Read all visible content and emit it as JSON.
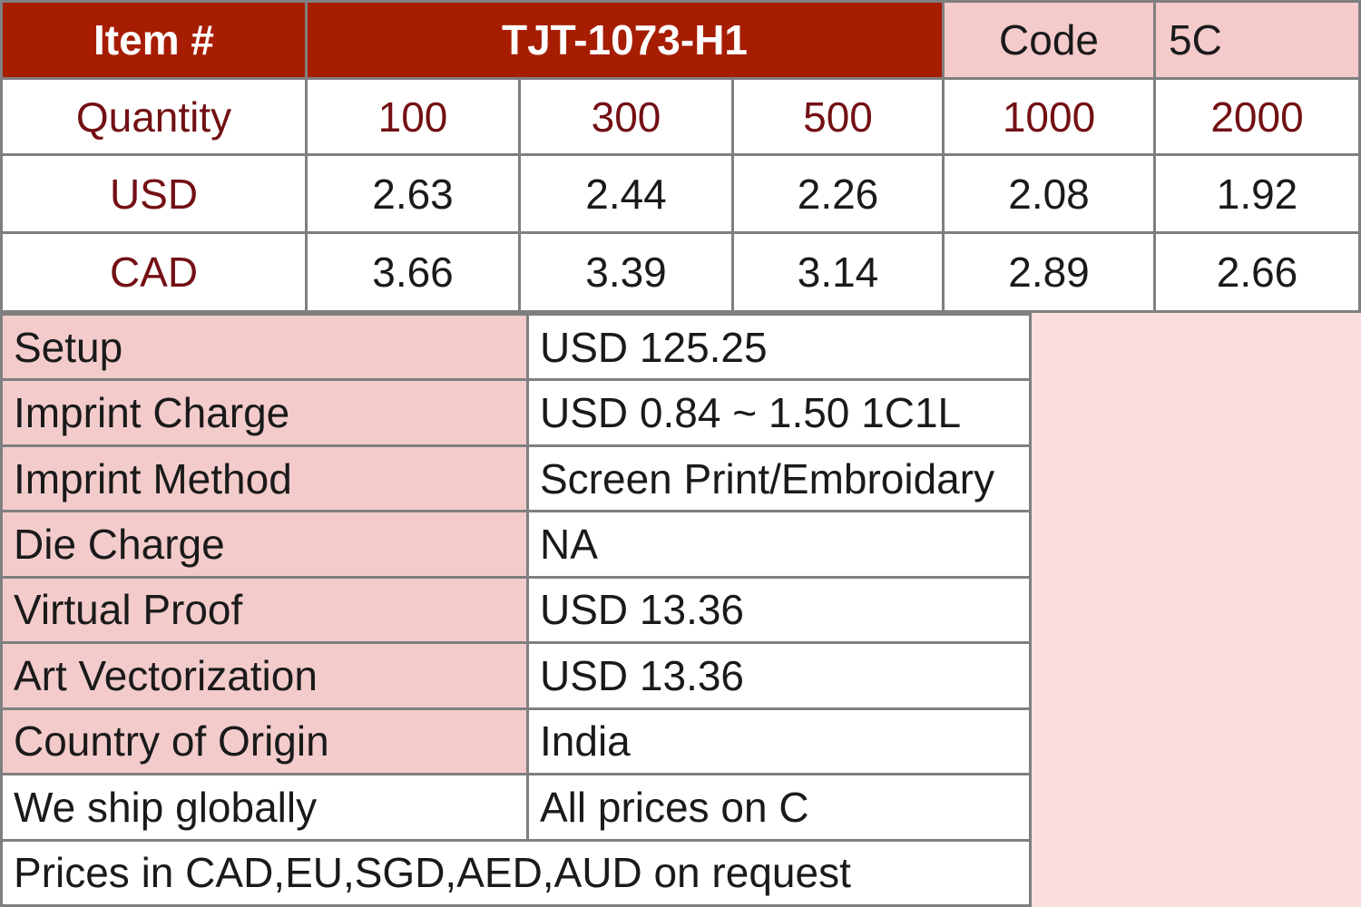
{
  "colors": {
    "header_bg": "#a61d02",
    "header_text": "#ffffff",
    "pink_cell": "#f4cacb",
    "label_pink": "#f3cbcb",
    "filler_pink": "#fcdede",
    "maroon_text": "#731014",
    "border_gray": "#7f7f7f",
    "body_text": "#1a1a1a"
  },
  "price_table": {
    "item_label": "Item #",
    "item_number": "TJT-1073-H1",
    "code_label": "Code",
    "code_value": "5C",
    "quantity_label": "Quantity",
    "quantities": [
      "100",
      "300",
      "500",
      "1000",
      "2000"
    ],
    "rows": [
      {
        "currency": "USD",
        "values": [
          "2.63",
          "2.44",
          "2.26",
          "2.08",
          "1.92"
        ]
      },
      {
        "currency": "CAD",
        "values": [
          "3.66",
          "3.39",
          "3.14",
          "2.89",
          "2.66"
        ]
      }
    ]
  },
  "details": {
    "rows": [
      {
        "label": "Setup",
        "value": "USD 125.25"
      },
      {
        "label": "Imprint Charge",
        "value": "USD 0.84 ~ 1.50 1C1L"
      },
      {
        "label": "Imprint Method",
        "value": "Screen Print/Embroidary"
      },
      {
        "label": "Die Charge",
        "value": "NA"
      },
      {
        "label": "Virtual Proof",
        "value": "USD 13.36"
      },
      {
        "label": "Art Vectorization",
        "value": "USD 13.36"
      },
      {
        "label": "Country of Origin",
        "value": "India"
      },
      {
        "label": "We ship globally",
        "value": "All prices on C"
      }
    ],
    "footer": "Prices in CAD,EU,SGD,AED,AUD on request"
  }
}
